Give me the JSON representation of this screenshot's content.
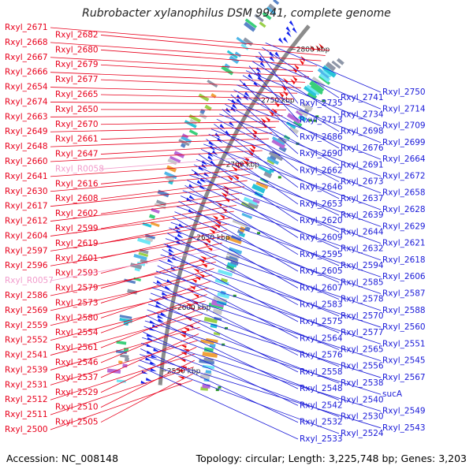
{
  "title": "Rubrobacter xylanophilus DSM 9941, complete genome",
  "footer": {
    "accession": "Accession: NC_008148",
    "topology": "Topology: circular; Length: 3,225,748 bp; Genes: 3,203"
  },
  "colors": {
    "left_label": "#e8001c",
    "left_label_rna": "#f29bcb",
    "right_label": "#1a1ad8",
    "forward_gene": "#ee1111",
    "reverse_gene": "#1122ee",
    "backbone": "#8c8c8c"
  },
  "scale_ticks": [
    "2800 kbp",
    "2750 kbp",
    "2700 kbp",
    "2650 kbp",
    "2600 kbp",
    "2550 kbp"
  ],
  "left_labels": [
    {
      "text": "Rxyl_2671",
      "rna": false
    },
    {
      "text": "Rxyl_2682",
      "rna": false
    },
    {
      "text": "Rxyl_2668",
      "rna": false
    },
    {
      "text": "Rxyl_2680",
      "rna": false
    },
    {
      "text": "Rxyl_2667",
      "rna": false
    },
    {
      "text": "Rxyl_2679",
      "rna": false
    },
    {
      "text": "Rxyl_2666",
      "rna": false
    },
    {
      "text": "Rxyl_2677",
      "rna": false
    },
    {
      "text": "Rxyl_2654",
      "rna": false
    },
    {
      "text": "Rxyl_2665",
      "rna": false
    },
    {
      "text": "Rxyl_2674",
      "rna": false
    },
    {
      "text": "Rxyl_2650",
      "rna": false
    },
    {
      "text": "Rxyl_2663",
      "rna": false
    },
    {
      "text": "Rxyl_2670",
      "rna": false
    },
    {
      "text": "Rxyl_2649",
      "rna": false
    },
    {
      "text": "Rxyl_2661",
      "rna": false
    },
    {
      "text": "Rxyl_2648",
      "rna": false
    },
    {
      "text": "Rxyl_2647",
      "rna": false
    },
    {
      "text": "Rxyl_2660",
      "rna": false
    },
    {
      "text": "Rxyl_R0058",
      "rna": true
    },
    {
      "text": "Rxyl_2641",
      "rna": false
    },
    {
      "text": "Rxyl_2616",
      "rna": false
    },
    {
      "text": "Rxyl_2630",
      "rna": false
    },
    {
      "text": "Rxyl_2608",
      "rna": false
    },
    {
      "text": "Rxyl_2617",
      "rna": false
    },
    {
      "text": "Rxyl_2602",
      "rna": false
    },
    {
      "text": "Rxyl_2612",
      "rna": false
    },
    {
      "text": "Rxyl_2599",
      "rna": false
    },
    {
      "text": "Rxyl_2604",
      "rna": false
    },
    {
      "text": "Rxyl_2619",
      "rna": false
    },
    {
      "text": "Rxyl_2597",
      "rna": false
    },
    {
      "text": "Rxyl_2601",
      "rna": false
    },
    {
      "text": "Rxyl_2596",
      "rna": false
    },
    {
      "text": "Rxyl_2593",
      "rna": false
    },
    {
      "text": "Rxyl_R0057",
      "rna": true
    },
    {
      "text": "Rxyl_2579",
      "rna": false
    },
    {
      "text": "Rxyl_2586",
      "rna": false
    },
    {
      "text": "Rxyl_2573",
      "rna": false
    },
    {
      "text": "Rxyl_2569",
      "rna": false
    },
    {
      "text": "Rxyl_2580",
      "rna": false
    },
    {
      "text": "Rxyl_2559",
      "rna": false
    },
    {
      "text": "Rxyl_2554",
      "rna": false
    },
    {
      "text": "Rxyl_2552",
      "rna": false
    },
    {
      "text": "Rxyl_2561",
      "rna": false
    },
    {
      "text": "Rxyl_2541",
      "rna": false
    },
    {
      "text": "Rxyl_2546",
      "rna": false
    },
    {
      "text": "Rxyl_2539",
      "rna": false
    },
    {
      "text": "Rxyl_2537",
      "rna": false
    },
    {
      "text": "Rxyl_2531",
      "rna": false
    },
    {
      "text": "Rxyl_2529",
      "rna": false
    },
    {
      "text": "Rxyl_2512",
      "rna": false
    },
    {
      "text": "Rxyl_2510",
      "rna": false
    },
    {
      "text": "Rxyl_2511",
      "rna": false
    },
    {
      "text": "Rxyl_2505",
      "rna": false
    },
    {
      "text": "Rxyl_2500",
      "rna": false
    }
  ],
  "right_labels": [
    "Rxyl_2750",
    "Rxyl_2741",
    "Rxyl_2735",
    "Rxyl_2714",
    "Rxyl_2734",
    "Rxyl_2713",
    "Rxyl_2709",
    "Rxyl_2698",
    "Rxyl_2686",
    "Rxyl_2699",
    "Rxyl_2676",
    "Rxyl_2690",
    "Rxyl_2664",
    "Rxyl_2691",
    "Rxyl_2662",
    "Rxyl_2672",
    "Rxyl_2673",
    "Rxyl_2646",
    "Rxyl_2658",
    "Rxyl_2637",
    "Rxyl_2653",
    "Rxyl_2628",
    "Rxyl_2639",
    "Rxyl_2620",
    "Rxyl_2629",
    "Rxyl_2644",
    "Rxyl_2609",
    "Rxyl_2621",
    "Rxyl_2632",
    "Rxyl_2595",
    "Rxyl_2618",
    "Rxyl_2594",
    "Rxyl_2605",
    "Rxyl_2606",
    "Rxyl_2585",
    "Rxyl_2607",
    "Rxyl_2587",
    "Rxyl_2578",
    "Rxyl_2583",
    "Rxyl_2588",
    "Rxyl_2570",
    "Rxyl_2575",
    "Rxyl_2560",
    "Rxyl_2577",
    "Rxyl_2564",
    "Rxyl_2551",
    "Rxyl_2565",
    "Rxyl_2576",
    "Rxyl_2545",
    "Rxyl_2556",
    "Rxyl_2558",
    "Rxyl_2567",
    "Rxyl_2538",
    "Rxyl_2548",
    "sucA",
    "Rxyl_2540",
    "Rxyl_2542",
    "Rxyl_2549",
    "Rxyl_2530",
    "Rxyl_2532",
    "Rxyl_2543",
    "Rxyl_2524",
    "Rxyl_2533"
  ]
}
